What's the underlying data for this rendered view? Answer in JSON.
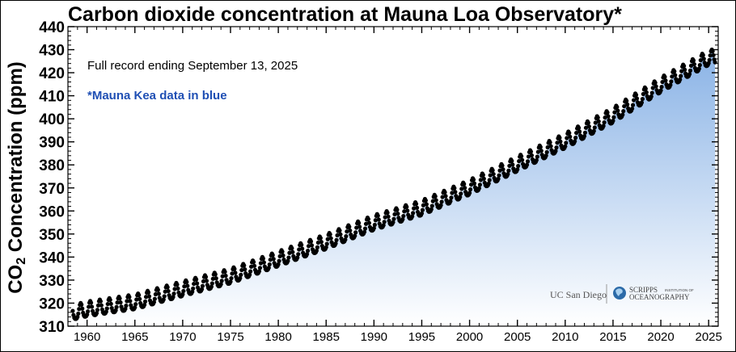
{
  "chart_data": {
    "type": "scatter",
    "title": "Carbon dioxide concentration at Mauna Loa Observatory*",
    "ylabel_main": "CO",
    "ylabel_sub": "2",
    "ylabel_rest": " Concentration (ppm)",
    "subtitle": "Full record ending September 13, 2025",
    "annotation": "*Mauna Kea data in blue",
    "xlim": [
      1958,
      2026
    ],
    "ylim": [
      310,
      440
    ],
    "xticks": [
      1960,
      1965,
      1970,
      1975,
      1980,
      1985,
      1990,
      1995,
      2000,
      2005,
      2010,
      2015,
      2020,
      2025
    ],
    "yticks": [
      310,
      320,
      330,
      340,
      350,
      360,
      370,
      380,
      390,
      400,
      410,
      420,
      430,
      440
    ],
    "series": [
      {
        "color": "#000000",
        "x": [
          1958.5,
          1960,
          1965,
          1970,
          1975,
          1980,
          1985,
          1990,
          1995,
          2000,
          2005,
          2010,
          2015,
          2020,
          2025,
          2025.7
        ],
        "y": [
          315.4,
          316.9,
          320.0,
          325.7,
          331.2,
          338.7,
          346.1,
          354.4,
          360.8,
          369.7,
          379.9,
          389.9,
          401.0,
          414.2,
          426.0,
          426.5
        ]
      }
    ],
    "seasonal_amplitude_ppm": 3.2,
    "fill_colors": [
      "#8ab3e6",
      "#ffffff"
    ]
  },
  "logos": {
    "ucsd": "UC San Diego",
    "scripps_top": "SCRIPPS",
    "scripps_small": "INSTITUTION OF",
    "scripps_bottom": "OCEANOGRAPHY"
  }
}
